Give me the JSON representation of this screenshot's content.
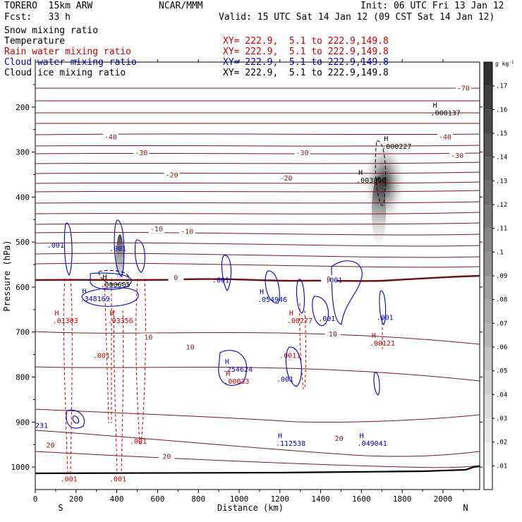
{
  "header": {
    "model": "TORERO  15km ARW",
    "org": "NCAR/MMM",
    "init": "Init: 06 UTC Fri 13 Jan 12",
    "fcst": "Fcst:   33 h",
    "valid": "Valid: 15 UTC Sat 14 Jan 12 (09 CST Sat 14 Jan 12)"
  },
  "fields": [
    {
      "name": "Snow mixing ratio",
      "xy": "",
      "color": "#000000"
    },
    {
      "name": "Temperature",
      "xy": "XY= 222.9,  5.1 to 222.9,149.8",
      "color": "#000000"
    },
    {
      "name": "Rain water mixing ratio",
      "xy": "XY= 222.9,  5.1 to 222.9,149.8",
      "color": "#cc0000"
    },
    {
      "name": "Cloud water mixing ratio",
      "xy": "XY= 222.9,  5.1 to 222.9,149.8",
      "color": "#0000cc"
    },
    {
      "name": "Cloud ice mixing ratio",
      "xy": "XY= 222.9,  5.1 to 222.9,149.8",
      "color": "#000000"
    }
  ],
  "chart_data": {
    "type": "cross-section",
    "xlabel": "Distance (km)",
    "ylabel": "Pressure (hPa)",
    "xlim": [
      0,
      2180
    ],
    "ylim": [
      1050,
      100
    ],
    "xticks": [
      0,
      200,
      400,
      600,
      800,
      1000,
      1200,
      1400,
      1600,
      1800,
      2000
    ],
    "yticks": [
      200,
      300,
      400,
      500,
      600,
      700,
      800,
      900,
      1000
    ],
    "end_left": "S",
    "end_right": "N",
    "colorbar": {
      "unit": "g kg",
      "unit_exp": "-1",
      "ticks": [
        ".01",
        ".02",
        ".03",
        ".04",
        ".05",
        ".06",
        ".07",
        ".08",
        ".09",
        ".1",
        ".11",
        ".12",
        ".13",
        ".14",
        ".15",
        ".16",
        ".17"
      ]
    },
    "temperature_labels": [
      {
        "t": "-70",
        "x": 2100,
        "p": 162
      },
      {
        "t": "-40",
        "x": 370,
        "p": 270
      },
      {
        "t": "-40",
        "x": 2010,
        "p": 270
      },
      {
        "t": "-30",
        "x": 520,
        "p": 305
      },
      {
        "t": "-30",
        "x": 1310,
        "p": 305
      },
      {
        "t": "-30",
        "x": 2070,
        "p": 312
      },
      {
        "t": "-20",
        "x": 670,
        "p": 355
      },
      {
        "t": "-20",
        "x": 1230,
        "p": 362
      },
      {
        "t": "-10",
        "x": 595,
        "p": 475
      },
      {
        "t": "-10",
        "x": 745,
        "p": 480
      },
      {
        "t": "0",
        "x": 690,
        "p": 583
      },
      {
        "t": "0",
        "x": 1440,
        "p": 586
      },
      {
        "t": "10",
        "x": 555,
        "p": 715
      },
      {
        "t": "10",
        "x": 760,
        "p": 737
      },
      {
        "t": "10",
        "x": 1460,
        "p": 708
      },
      {
        "t": "20",
        "x": 75,
        "p": 955
      },
      {
        "t": "20",
        "x": 645,
        "p": 980
      },
      {
        "t": "20",
        "x": 1490,
        "p": 940
      }
    ],
    "maxima": [
      {
        "v": ".000137",
        "x": 1940,
        "p": 215,
        "c": "#000000"
      },
      {
        "v": ".000227",
        "x": 1700,
        "p": 290,
        "c": "#000000"
      },
      {
        "v": ".003896",
        "x": 1575,
        "p": 365,
        "c": "#000000"
      },
      {
        "v": ".000605",
        "x": 320,
        "p": 597,
        "c": "#000000"
      },
      {
        "v": ".348169",
        "x": 220,
        "p": 628,
        "c": "#0000cc"
      },
      {
        "v": ".054946",
        "x": 1090,
        "p": 630,
        "c": "#0000cc"
      },
      {
        "v": ".01303",
        "x": 85,
        "p": 677,
        "c": "#cc0000"
      },
      {
        "v": ".03356",
        "x": 355,
        "p": 677,
        "c": "#cc0000"
      },
      {
        "v": ".00277",
        "x": 1235,
        "p": 677,
        "c": "#cc0000"
      },
      {
        "v": ".00121",
        "x": 1640,
        "p": 727,
        "c": "#cc0000"
      },
      {
        "v": ".254624",
        "x": 920,
        "p": 785,
        "c": "#0000cc"
      },
      {
        "v": ".00033",
        "x": 925,
        "p": 812,
        "c": "#cc0000"
      },
      {
        "v": ".112538",
        "x": 1180,
        "p": 950,
        "c": "#0000cc"
      },
      {
        "v": ".049041",
        "x": 1580,
        "p": 950,
        "c": "#0000cc"
      },
      {
        "v": "231",
        "x": 0,
        "p": 910,
        "c": "#0000cc"
      }
    ],
    "contour_labels": [
      {
        "v": ".001",
        "x": 100,
        "p": 512,
        "c": "#0000cc"
      },
      {
        "v": ".001",
        "x": 405,
        "p": 520,
        "c": "#0000cc"
      },
      {
        "v": ".001",
        "x": 910,
        "p": 590,
        "c": "#0000cc"
      },
      {
        "v": ".001",
        "x": 1465,
        "p": 590,
        "c": "#0000cc"
      },
      {
        "v": ".001",
        "x": 1430,
        "p": 675,
        "c": "#0000cc"
      },
      {
        "v": ".001",
        "x": 1715,
        "p": 673,
        "c": "#0000cc"
      },
      {
        "v": ".001",
        "x": 325,
        "p": 758,
        "c": "#cc0000"
      },
      {
        "v": ".0011",
        "x": 1250,
        "p": 758,
        "c": "#cc0000"
      },
      {
        "v": ".001",
        "x": 1225,
        "p": 810,
        "c": "#0000cc"
      },
      {
        "v": ".001",
        "x": 505,
        "p": 948,
        "c": "#cc0000"
      },
      {
        "v": ".001",
        "x": 165,
        "p": 1032,
        "c": "#cc0000"
      },
      {
        "v": ".001",
        "x": 405,
        "p": 1032,
        "c": "#cc0000"
      }
    ]
  }
}
